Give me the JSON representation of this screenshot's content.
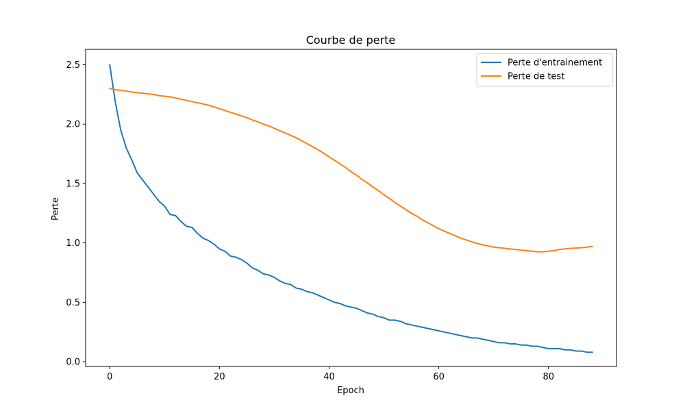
{
  "chart_data": {
    "type": "line",
    "title": "Courbe de perte",
    "xlabel": "Epoch",
    "ylabel": "Perte",
    "xlim": [
      -4.4,
      92.4
    ],
    "ylim": [
      -0.04,
      2.63
    ],
    "xticks": [
      0,
      20,
      40,
      60,
      80
    ],
    "yticks": [
      0.0,
      0.5,
      1.0,
      1.5,
      2.0,
      2.5
    ],
    "xtick_labels": [
      "0",
      "20",
      "40",
      "60",
      "80"
    ],
    "ytick_labels": [
      "0.0",
      "0.5",
      "1.0",
      "1.5",
      "2.0",
      "2.5"
    ],
    "grid": false,
    "legend_position": "top-right",
    "series": [
      {
        "name": "Perte d'entrainement",
        "color": "#1f77b4",
        "x": [
          0,
          1,
          2,
          3,
          4,
          5,
          6,
          7,
          8,
          9,
          10,
          11,
          12,
          13,
          14,
          15,
          16,
          17,
          18,
          19,
          20,
          21,
          22,
          23,
          24,
          25,
          26,
          27,
          28,
          29,
          30,
          31,
          32,
          33,
          34,
          35,
          36,
          37,
          38,
          39,
          40,
          41,
          42,
          43,
          44,
          45,
          46,
          47,
          48,
          49,
          50,
          51,
          52,
          53,
          54,
          55,
          56,
          57,
          58,
          59,
          60,
          61,
          62,
          63,
          64,
          65,
          66,
          67,
          68,
          69,
          70,
          71,
          72,
          73,
          74,
          75,
          76,
          77,
          78,
          79,
          80,
          81,
          82,
          83,
          84,
          85,
          86,
          87,
          88
        ],
        "y": [
          2.5,
          2.19,
          1.95,
          1.8,
          1.7,
          1.59,
          1.53,
          1.47,
          1.41,
          1.35,
          1.31,
          1.24,
          1.23,
          1.18,
          1.14,
          1.13,
          1.08,
          1.04,
          1.02,
          0.99,
          0.95,
          0.93,
          0.89,
          0.88,
          0.86,
          0.83,
          0.79,
          0.77,
          0.74,
          0.73,
          0.71,
          0.68,
          0.66,
          0.65,
          0.62,
          0.61,
          0.59,
          0.58,
          0.56,
          0.54,
          0.52,
          0.5,
          0.49,
          0.47,
          0.46,
          0.45,
          0.43,
          0.41,
          0.4,
          0.38,
          0.37,
          0.35,
          0.35,
          0.34,
          0.32,
          0.31,
          0.3,
          0.29,
          0.28,
          0.27,
          0.26,
          0.25,
          0.24,
          0.23,
          0.22,
          0.21,
          0.2,
          0.2,
          0.19,
          0.18,
          0.17,
          0.16,
          0.16,
          0.15,
          0.15,
          0.14,
          0.14,
          0.13,
          0.13,
          0.12,
          0.11,
          0.11,
          0.11,
          0.1,
          0.1,
          0.09,
          0.09,
          0.08,
          0.08
        ]
      },
      {
        "name": "Perte de test",
        "color": "#ff7f0e",
        "x": [
          0,
          1,
          2,
          3,
          4,
          5,
          6,
          7,
          8,
          9,
          10,
          11,
          12,
          13,
          14,
          15,
          16,
          17,
          18,
          19,
          20,
          21,
          22,
          23,
          24,
          25,
          26,
          27,
          28,
          29,
          30,
          31,
          32,
          33,
          34,
          35,
          36,
          37,
          38,
          39,
          40,
          41,
          42,
          43,
          44,
          45,
          46,
          47,
          48,
          49,
          50,
          51,
          52,
          53,
          54,
          55,
          56,
          57,
          58,
          59,
          60,
          61,
          62,
          63,
          64,
          65,
          66,
          67,
          68,
          69,
          70,
          71,
          72,
          73,
          74,
          75,
          76,
          77,
          78,
          79,
          80,
          81,
          82,
          83,
          84,
          85,
          86,
          87,
          88
        ],
        "y": [
          2.3,
          2.29,
          2.285,
          2.28,
          2.27,
          2.265,
          2.26,
          2.255,
          2.25,
          2.24,
          2.235,
          2.23,
          2.22,
          2.21,
          2.2,
          2.19,
          2.18,
          2.17,
          2.16,
          2.145,
          2.13,
          2.115,
          2.1,
          2.085,
          2.07,
          2.055,
          2.035,
          2.02,
          2.0,
          1.985,
          1.965,
          1.945,
          1.925,
          1.905,
          1.885,
          1.86,
          1.835,
          1.81,
          1.785,
          1.755,
          1.725,
          1.695,
          1.665,
          1.635,
          1.6,
          1.57,
          1.535,
          1.505,
          1.47,
          1.44,
          1.405,
          1.375,
          1.34,
          1.31,
          1.28,
          1.25,
          1.225,
          1.195,
          1.17,
          1.145,
          1.12,
          1.1,
          1.08,
          1.06,
          1.04,
          1.025,
          1.01,
          0.995,
          0.985,
          0.975,
          0.965,
          0.96,
          0.955,
          0.95,
          0.945,
          0.94,
          0.935,
          0.93,
          0.925,
          0.925,
          0.93,
          0.935,
          0.945,
          0.95,
          0.955,
          0.957,
          0.96,
          0.965,
          0.97
        ]
      }
    ]
  }
}
